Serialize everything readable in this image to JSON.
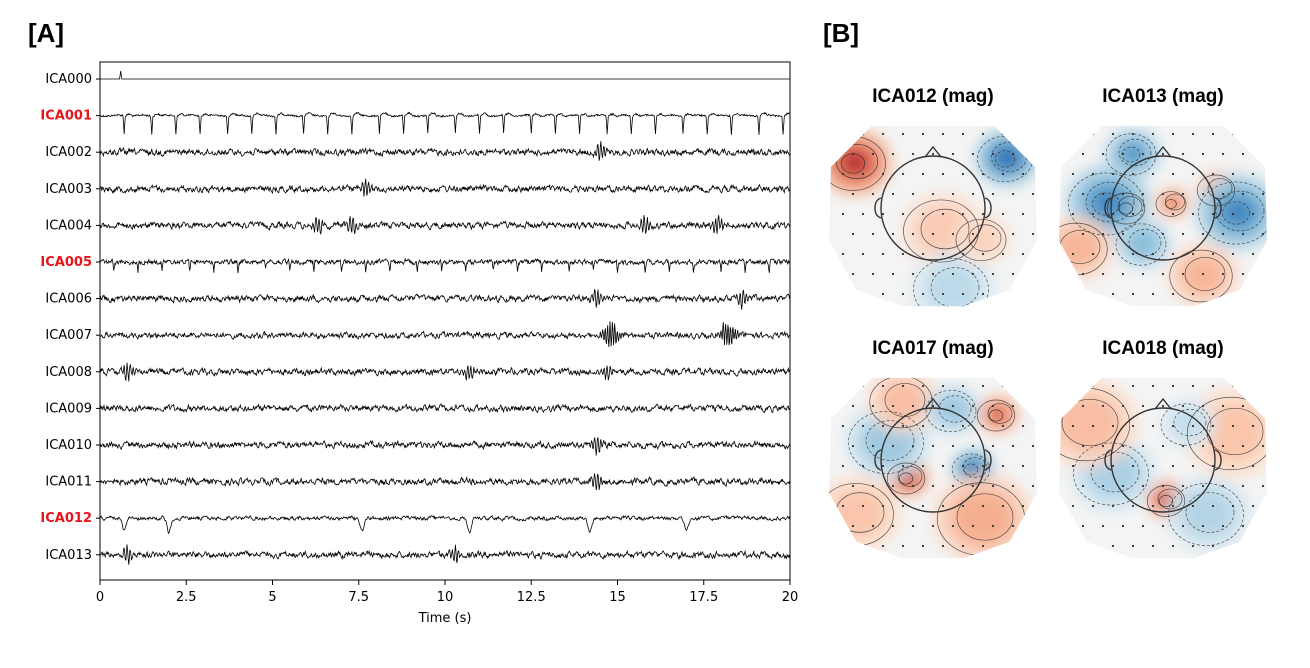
{
  "panels": {
    "a_label": "[A]",
    "b_label": "[B]"
  },
  "chart_data": [
    {
      "type": "line",
      "title": "",
      "xlabel": "Time (s)",
      "ylabel": "",
      "xlim": [
        0,
        20
      ],
      "xticks": [
        "0",
        "2.5",
        "5",
        "7.5",
        "10",
        "12.5",
        "15",
        "17.5",
        "20"
      ],
      "xtick_values": [
        0,
        2.5,
        5,
        7.5,
        10,
        12.5,
        15,
        17.5,
        20
      ],
      "grid": false,
      "highlight_color": "#e8141c",
      "series": [
        {
          "name": "ICA000",
          "highlighted": false,
          "pattern": "flat_spike",
          "events_s": [
            0.6
          ]
        },
        {
          "name": "ICA001",
          "highlighted": true,
          "pattern": "ecg",
          "events_s": [
            0.7,
            1.5,
            2.2,
            2.9,
            3.7,
            4.4,
            5.1,
            5.9,
            6.6,
            7.3,
            8.1,
            8.8,
            9.5,
            10.3,
            11.0,
            11.7,
            12.5,
            13.2,
            13.9,
            14.7,
            15.4,
            16.1,
            16.9,
            17.6,
            18.3,
            19.1,
            19.8
          ]
        },
        {
          "name": "ICA002",
          "highlighted": false,
          "pattern": "noise",
          "events_s": [
            14.5
          ]
        },
        {
          "name": "ICA003",
          "highlighted": false,
          "pattern": "noise",
          "events_s": [
            7.7
          ]
        },
        {
          "name": "ICA004",
          "highlighted": false,
          "pattern": "noise",
          "events_s": [
            6.3,
            7.3,
            15.8,
            17.9
          ]
        },
        {
          "name": "ICA005",
          "highlighted": true,
          "pattern": "cardiac_small",
          "events_s": [
            0.4,
            1.1,
            1.8,
            2.6,
            3.3,
            4.0,
            4.8,
            5.5,
            6.2,
            7.0,
            7.7,
            8.4,
            9.2,
            9.9,
            10.6,
            11.4,
            12.1,
            12.8,
            13.6,
            14.3,
            15.0,
            15.8,
            16.5,
            17.2,
            18.0,
            18.7,
            19.4
          ]
        },
        {
          "name": "ICA006",
          "highlighted": false,
          "pattern": "noise",
          "events_s": [
            14.4,
            18.6
          ]
        },
        {
          "name": "ICA007",
          "highlighted": false,
          "pattern": "burst",
          "events_s": [
            14.8,
            18.2
          ]
        },
        {
          "name": "ICA008",
          "highlighted": false,
          "pattern": "noise",
          "events_s": [
            0.8,
            10.7,
            14.7
          ]
        },
        {
          "name": "ICA009",
          "highlighted": false,
          "pattern": "noise",
          "events_s": []
        },
        {
          "name": "ICA010",
          "highlighted": false,
          "pattern": "noise",
          "events_s": [
            14.4
          ]
        },
        {
          "name": "ICA011",
          "highlighted": false,
          "pattern": "noise",
          "events_s": [
            14.4
          ]
        },
        {
          "name": "ICA012",
          "highlighted": true,
          "pattern": "eog",
          "events_s": [
            0.7,
            2.0,
            7.6,
            10.7,
            14.2,
            17.0
          ]
        },
        {
          "name": "ICA013",
          "highlighted": false,
          "pattern": "noise",
          "events_s": [
            10.3,
            0.8
          ]
        }
      ]
    },
    {
      "type": "heatmap",
      "title": "ICA012 (mag)",
      "blobs": [
        {
          "x": -0.78,
          "y": 0.55,
          "w": 0.16,
          "r": 0.26,
          "sign": 1,
          "amp": 1.0
        },
        {
          "x": 0.74,
          "y": 0.6,
          "w": 0.16,
          "r": 0.22,
          "sign": -1,
          "amp": 1.0
        },
        {
          "x": 0.1,
          "y": -0.2,
          "w": 0.3,
          "r": 0.3,
          "sign": 1,
          "amp": 0.35
        },
        {
          "x": 0.2,
          "y": -0.85,
          "w": 0.3,
          "r": 0.3,
          "sign": -1,
          "amp": 0.35
        },
        {
          "x": 0.5,
          "y": -0.3,
          "w": 0.2,
          "r": 0.2,
          "sign": 1,
          "amp": 0.3
        }
      ]
    },
    {
      "type": "heatmap",
      "title": "ICA013 (mag)",
      "blobs": [
        {
          "x": -0.35,
          "y": 0.05,
          "w": 0.15,
          "r": 0.12,
          "sign": 1,
          "amp": 1.0
        },
        {
          "x": 0.1,
          "y": 0.1,
          "w": 0.12,
          "r": 0.1,
          "sign": 1,
          "amp": 0.7
        },
        {
          "x": 0.55,
          "y": 0.25,
          "w": 0.15,
          "r": 0.15,
          "sign": 1,
          "amp": 0.6
        },
        {
          "x": -0.55,
          "y": 0.1,
          "w": 0.25,
          "r": 0.3,
          "sign": -1,
          "amp": 0.8
        },
        {
          "x": 0.75,
          "y": 0.0,
          "w": 0.2,
          "r": 0.3,
          "sign": -1,
          "amp": 0.8
        },
        {
          "x": -0.2,
          "y": -0.35,
          "w": 0.2,
          "r": 0.2,
          "sign": -1,
          "amp": 0.6
        },
        {
          "x": -0.85,
          "y": -0.4,
          "w": 0.2,
          "r": 0.25,
          "sign": 1,
          "amp": 0.5
        },
        {
          "x": 0.4,
          "y": -0.7,
          "w": 0.25,
          "r": 0.2,
          "sign": 1,
          "amp": 0.5
        },
        {
          "x": -0.3,
          "y": 0.65,
          "w": 0.2,
          "r": 0.2,
          "sign": -1,
          "amp": 0.7
        }
      ]
    },
    {
      "type": "heatmap",
      "title": "ICA017 (mag)",
      "blobs": [
        {
          "x": -0.25,
          "y": -0.15,
          "w": 0.15,
          "r": 0.12,
          "sign": 1,
          "amp": 1.0
        },
        {
          "x": 0.4,
          "y": -0.05,
          "w": 0.15,
          "r": 0.12,
          "sign": -1,
          "amp": 1.0
        },
        {
          "x": 0.65,
          "y": 0.55,
          "w": 0.15,
          "r": 0.15,
          "sign": 1,
          "amp": 0.8
        },
        {
          "x": -0.45,
          "y": 0.25,
          "w": 0.3,
          "r": 0.3,
          "sign": -1,
          "amp": 0.5
        },
        {
          "x": 0.5,
          "y": -0.6,
          "w": 0.35,
          "r": 0.3,
          "sign": 1,
          "amp": 0.55
        },
        {
          "x": -0.75,
          "y": -0.55,
          "w": 0.3,
          "r": 0.3,
          "sign": 1,
          "amp": 0.4
        },
        {
          "x": -0.3,
          "y": 0.7,
          "w": 0.25,
          "r": 0.2,
          "sign": 1,
          "amp": 0.45
        },
        {
          "x": 0.2,
          "y": 0.6,
          "w": 0.2,
          "r": 0.2,
          "sign": -1,
          "amp": 0.5
        }
      ]
    },
    {
      "type": "heatmap",
      "title": "ICA018 (mag)",
      "blobs": [
        {
          "x": 0.05,
          "y": -0.4,
          "w": 0.15,
          "r": 0.12,
          "sign": 1,
          "amp": 1.0
        },
        {
          "x": -0.5,
          "y": -0.1,
          "w": 0.3,
          "r": 0.3,
          "sign": -1,
          "amp": 0.45
        },
        {
          "x": 0.45,
          "y": -0.55,
          "w": 0.3,
          "r": 0.25,
          "sign": -1,
          "amp": 0.4
        },
        {
          "x": -0.75,
          "y": 0.45,
          "w": 0.35,
          "r": 0.3,
          "sign": 1,
          "amp": 0.45
        },
        {
          "x": 0.7,
          "y": 0.35,
          "w": 0.35,
          "r": 0.3,
          "sign": 1,
          "amp": 0.4
        },
        {
          "x": 0.25,
          "y": 0.45,
          "w": 0.2,
          "r": 0.2,
          "sign": -1,
          "amp": 0.3
        }
      ]
    }
  ]
}
